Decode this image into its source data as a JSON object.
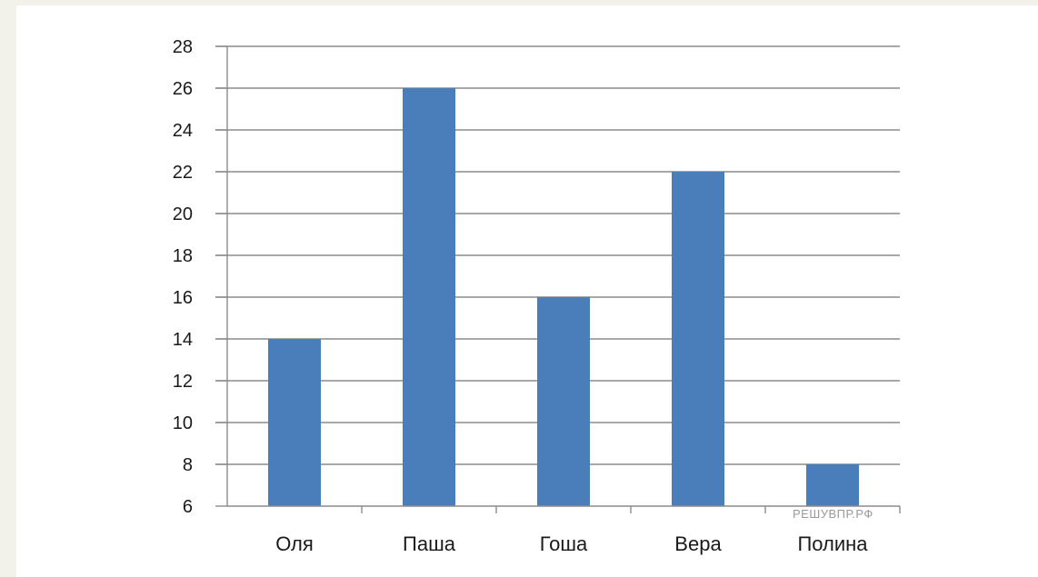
{
  "chart_data": {
    "type": "bar",
    "categories": [
      "Оля",
      "Паша",
      "Гоша",
      "Вера",
      "Полина"
    ],
    "values": [
      14,
      26,
      16,
      22,
      8
    ],
    "title": "",
    "xlabel": "",
    "ylabel": "",
    "ylim": [
      6,
      28
    ],
    "yticks": [
      6,
      8,
      10,
      12,
      14,
      16,
      18,
      20,
      22,
      24,
      26,
      28
    ],
    "grid": true,
    "legend": "none",
    "bar_color": "#4a7ebb"
  },
  "watermark": "РЕШУВПР.РФ",
  "colors": {
    "background": "#f3f2ea",
    "panel": "#ffffff",
    "gridline": "#8c8c8c",
    "axis": "#8c8c8c"
  }
}
